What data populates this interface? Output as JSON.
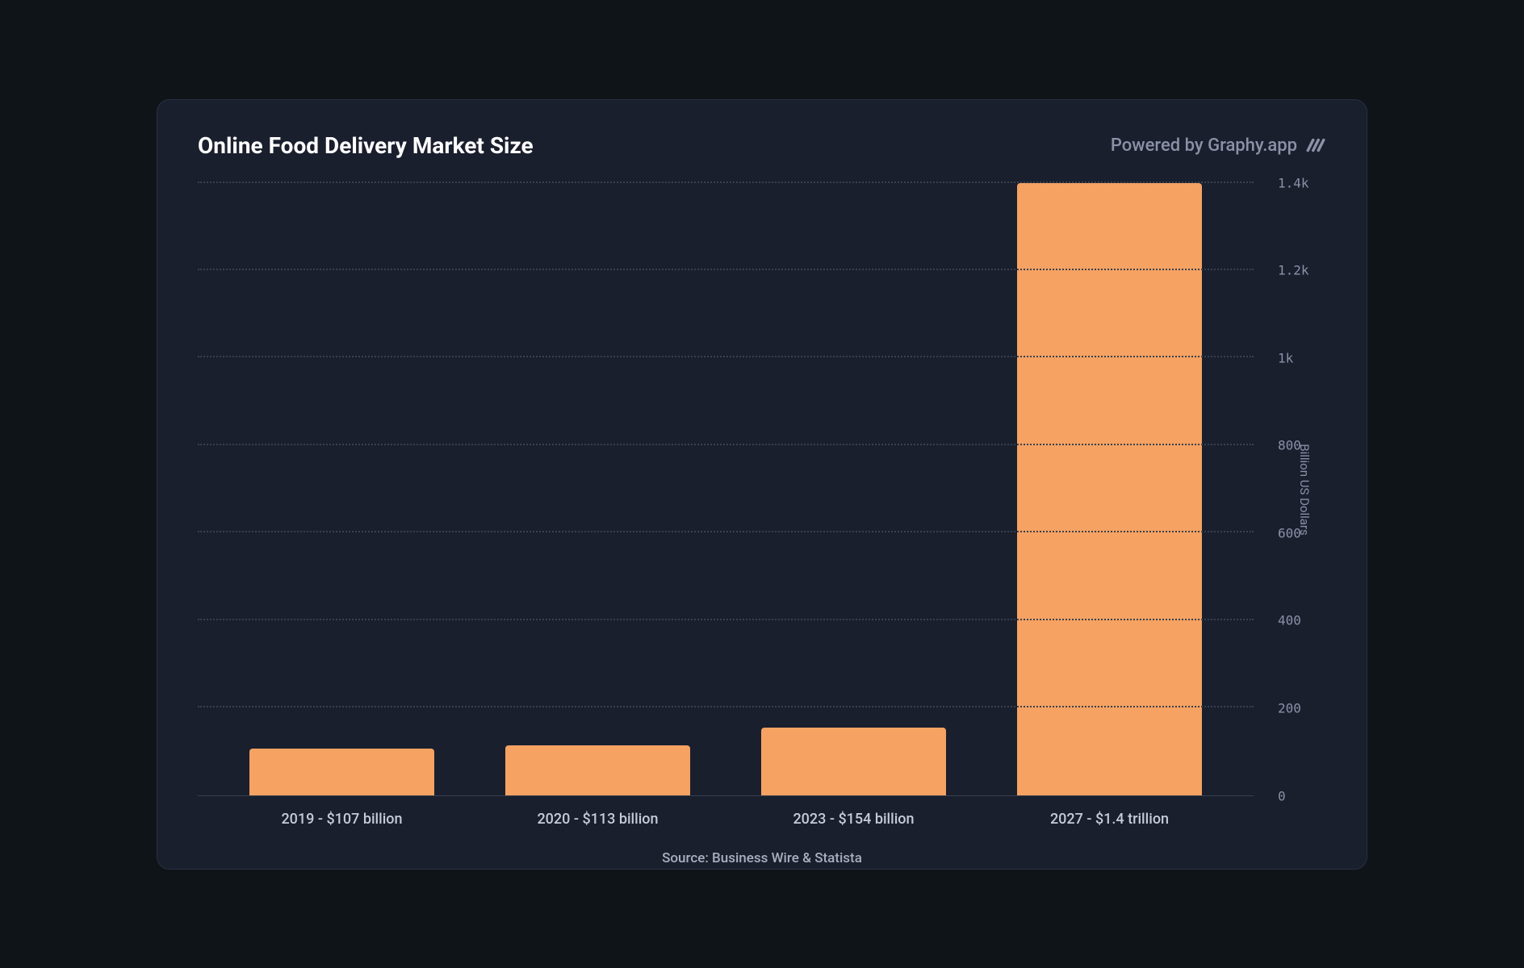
{
  "title": "Online Food Delivery Market Size",
  "powered_by": "Powered by Graphy.app",
  "source": "Source: Business Wire & Statista",
  "chart": {
    "type": "bar",
    "y_axis_label": "Billion US Dollars",
    "ylim": [
      0,
      1400
    ],
    "ytick_step": 200,
    "yticks": [
      {
        "value": 0,
        "label": "0"
      },
      {
        "value": 200,
        "label": "200"
      },
      {
        "value": 400,
        "label": "400"
      },
      {
        "value": 600,
        "label": "600"
      },
      {
        "value": 800,
        "label": "800"
      },
      {
        "value": 1000,
        "label": "1k"
      },
      {
        "value": 1200,
        "label": "1.2k"
      },
      {
        "value": 1400,
        "label": "1.4k"
      }
    ],
    "categories": [
      "2019 - $107 billion",
      "2020 - $113 billion",
      "2023 - $154 billion",
      "2027 - $1.4 trillion"
    ],
    "values": [
      107,
      113,
      154,
      1400
    ],
    "bar_color": "#f5a262",
    "bar_width": 0.72,
    "background_color": "#1a1f2e",
    "grid_color": "#3a4050",
    "text_color": "#c5cad6",
    "muted_text_color": "#8a92a6",
    "title_color": "#ffffff",
    "title_fontsize": 28,
    "label_fontsize": 18,
    "tick_fontsize": 16
  }
}
